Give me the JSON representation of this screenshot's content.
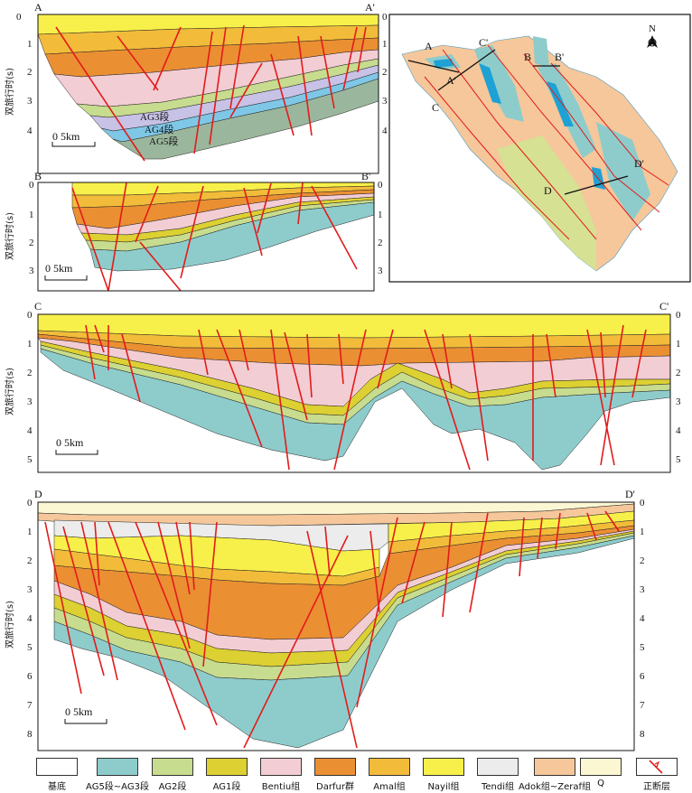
{
  "sections": {
    "aa": {
      "start": "A",
      "end": "A'",
      "ylabel": "双旅行时(s)",
      "ticks": [
        "0",
        "1",
        "2",
        "3",
        "4"
      ],
      "scale": "0   5km",
      "units": [
        "AG3段",
        "AG4段",
        "AG5段"
      ]
    },
    "bb": {
      "start": "B",
      "end": "B'",
      "ylabel": "双旅行时(s)",
      "ticks": [
        "0",
        "1",
        "2",
        "3"
      ],
      "scale": "0   5km"
    },
    "cc": {
      "start": "C",
      "end": "C'",
      "ylabel": "双旅行时(s)",
      "ticks": [
        "0",
        "1",
        "2",
        "3",
        "4",
        "5"
      ],
      "scale": "0   5km"
    },
    "dd": {
      "start": "D",
      "end": "D'",
      "ylabel": "双旅行时(s)",
      "ticks": [
        "0",
        "1",
        "2",
        "3",
        "4",
        "5",
        "6",
        "7",
        "8"
      ],
      "scale": "0   5km"
    }
  },
  "map": {
    "north": "N",
    "lines": [
      {
        "start": "A",
        "end": "A'"
      },
      {
        "start": "B",
        "end": "B'"
      },
      {
        "start": "C",
        "end": "C'"
      },
      {
        "start": "D",
        "end": "D'"
      }
    ]
  },
  "legend": [
    {
      "label": "基底",
      "color": "#ffffff"
    },
    {
      "label": "AG5段~AG3段",
      "color": "#8ecccc"
    },
    {
      "label": "AG2段",
      "color": "#c7dc8e"
    },
    {
      "label": "AG1段",
      "color": "#ddd032"
    },
    {
      "label": "Bentiu组",
      "color": "#f3cdd4"
    },
    {
      "label": "Darfur群",
      "color": "#eb8f33"
    },
    {
      "label": "Amal组",
      "color": "#f2bc3a"
    },
    {
      "label": "Nayil组",
      "color": "#f8f04a"
    },
    {
      "label": "Tendi组",
      "color": "#ececec"
    },
    {
      "label": "Adok组~Zeraf组",
      "color": "#f5c79a"
    },
    {
      "label": "Q",
      "color": "#fbf7d3"
    },
    {
      "label": "正断层",
      "color": "#e21b1b"
    }
  ]
}
